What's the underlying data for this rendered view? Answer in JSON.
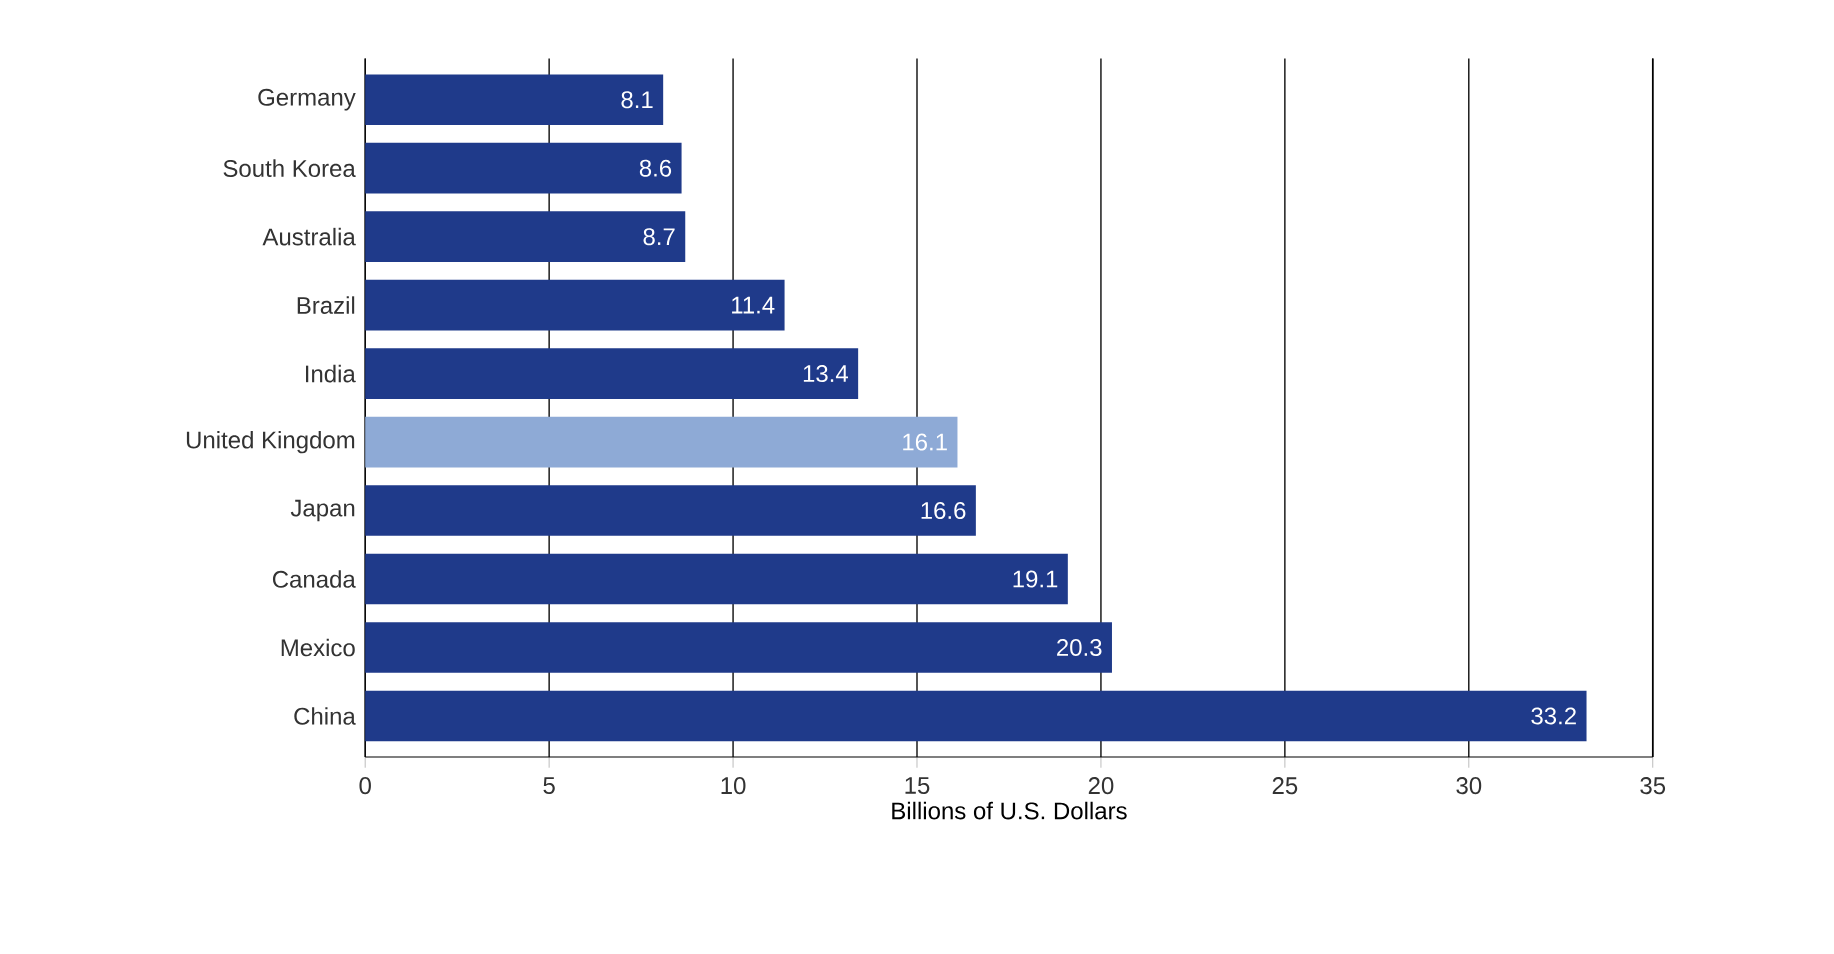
{
  "chart_data": {
    "type": "bar",
    "orientation": "horizontal",
    "xlabel": "Billions of U.S. Dollars",
    "categories": [
      "Germany",
      "South Korea",
      "Australia",
      "Brazil",
      "India",
      "United Kingdom",
      "Japan",
      "Canada",
      "Mexico",
      "China"
    ],
    "values": [
      8.1,
      8.6,
      8.7,
      11.4,
      13.4,
      16.1,
      16.6,
      19.1,
      20.3,
      33.2
    ],
    "colors": [
      "#1f3a8a",
      "#1f3a8a",
      "#1f3a8a",
      "#1f3a8a",
      "#1f3a8a",
      "#8eaad6",
      "#1f3a8a",
      "#1f3a8a",
      "#1f3a8a",
      "#1f3a8a"
    ],
    "xlim": [
      0,
      35
    ],
    "xticks": [
      0,
      5,
      10,
      15,
      20,
      25,
      30,
      35
    ],
    "grid": "x",
    "data_labels": true
  }
}
